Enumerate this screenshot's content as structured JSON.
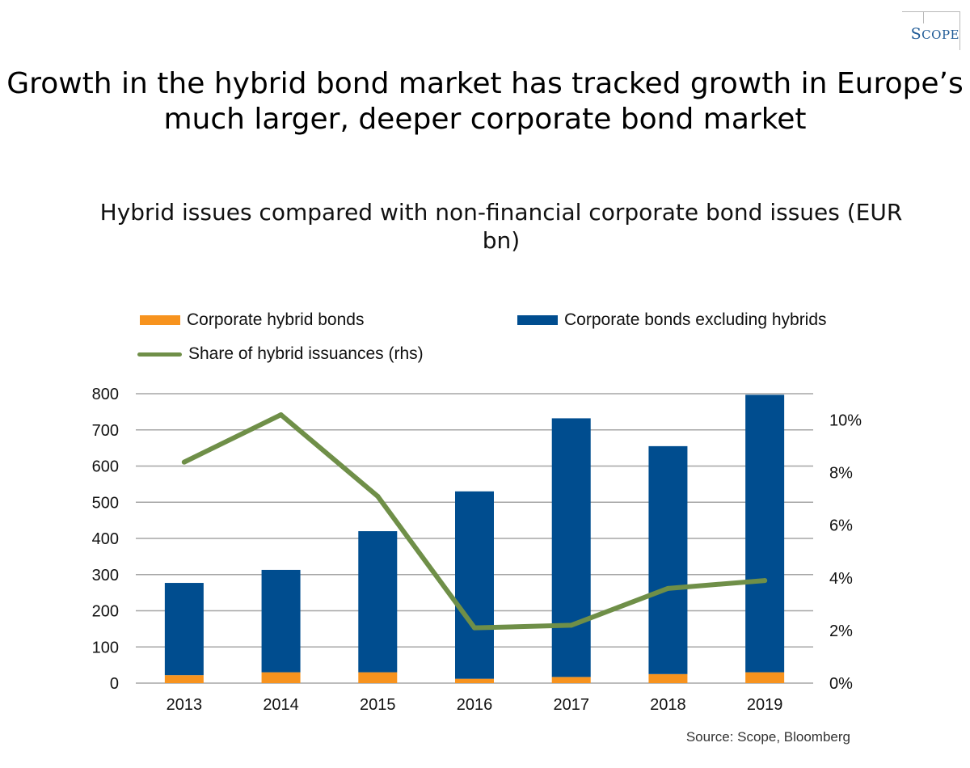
{
  "logo": {
    "brand": "S",
    "rest": "COPE"
  },
  "title": "Growth in the hybrid bond market has tracked growth in Europe’s much larger, deeper corporate bond market",
  "chart_data": {
    "type": "bar",
    "title": "Hybrid issues compared with non-financial corporate bond issues (EUR bn)",
    "categories": [
      "2013",
      "2014",
      "2015",
      "2016",
      "2017",
      "2018",
      "2019"
    ],
    "series": [
      {
        "name": "Corporate hybrid bonds",
        "kind": "bar",
        "stack": "total",
        "color": "#f7931e",
        "values": [
          22,
          30,
          30,
          12,
          17,
          25,
          30
        ]
      },
      {
        "name": "Corporate bonds excluding hybrids",
        "kind": "bar",
        "stack": "total",
        "color": "#004d8f",
        "values": [
          255,
          283,
          390,
          518,
          715,
          630,
          767
        ]
      },
      {
        "name": "Share of hybrid issuances (rhs)",
        "kind": "line",
        "axis": "right",
        "color": "#6f8f48",
        "values": [
          0.084,
          0.102,
          0.071,
          0.021,
          0.022,
          0.036,
          0.039
        ]
      }
    ],
    "ylim": [
      0,
      800
    ],
    "yticks": [
      "0",
      "100",
      "200",
      "300",
      "400",
      "500",
      "600",
      "700",
      "800"
    ],
    "y2lim": [
      0,
      0.11
    ],
    "y2ticks": [
      "0%",
      "2%",
      "4%",
      "6%",
      "8%",
      "10%"
    ],
    "xlabel": "",
    "ylabel": "",
    "grid": true,
    "legend": "top"
  },
  "source": "Source: Scope, Bloomberg"
}
